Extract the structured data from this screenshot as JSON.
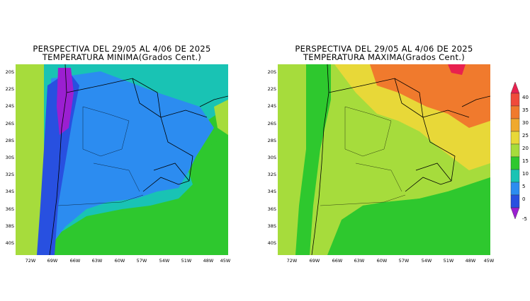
{
  "panels": [
    {
      "id": "min",
      "title_line1": "PERSPECTIVA DEL 29/05 AL 4/06 DE 2025",
      "title_line2": "TEMPERATURA MINIMA(Grados Cent.)"
    },
    {
      "id": "max",
      "title_line1": "PERSPECTIVA DEL 29/05 AL 4/06 DE 2025",
      "title_line2": "TEMPERATURA MAXIMA(Grados Cent.)"
    }
  ],
  "lat_labels": [
    "20S",
    "22S",
    "24S",
    "26S",
    "28S",
    "30S",
    "32S",
    "34S",
    "36S",
    "38S",
    "40S"
  ],
  "lon_labels": [
    "72W",
    "69W",
    "66W",
    "63W",
    "60W",
    "57W",
    "54W",
    "51W",
    "48W",
    "45W"
  ],
  "colorbar": {
    "labels": [
      "40",
      "35",
      "30",
      "25",
      "20",
      "15",
      "10",
      "5",
      "0",
      "-5"
    ],
    "colors": [
      "#e8214f",
      "#f04a3a",
      "#f07a2d",
      "#f0a92d",
      "#e8d838",
      "#a6dc3c",
      "#2ec82e",
      "#19c3b4",
      "#2c8cf0",
      "#2850e0",
      "#9b1fd1"
    ]
  }
}
